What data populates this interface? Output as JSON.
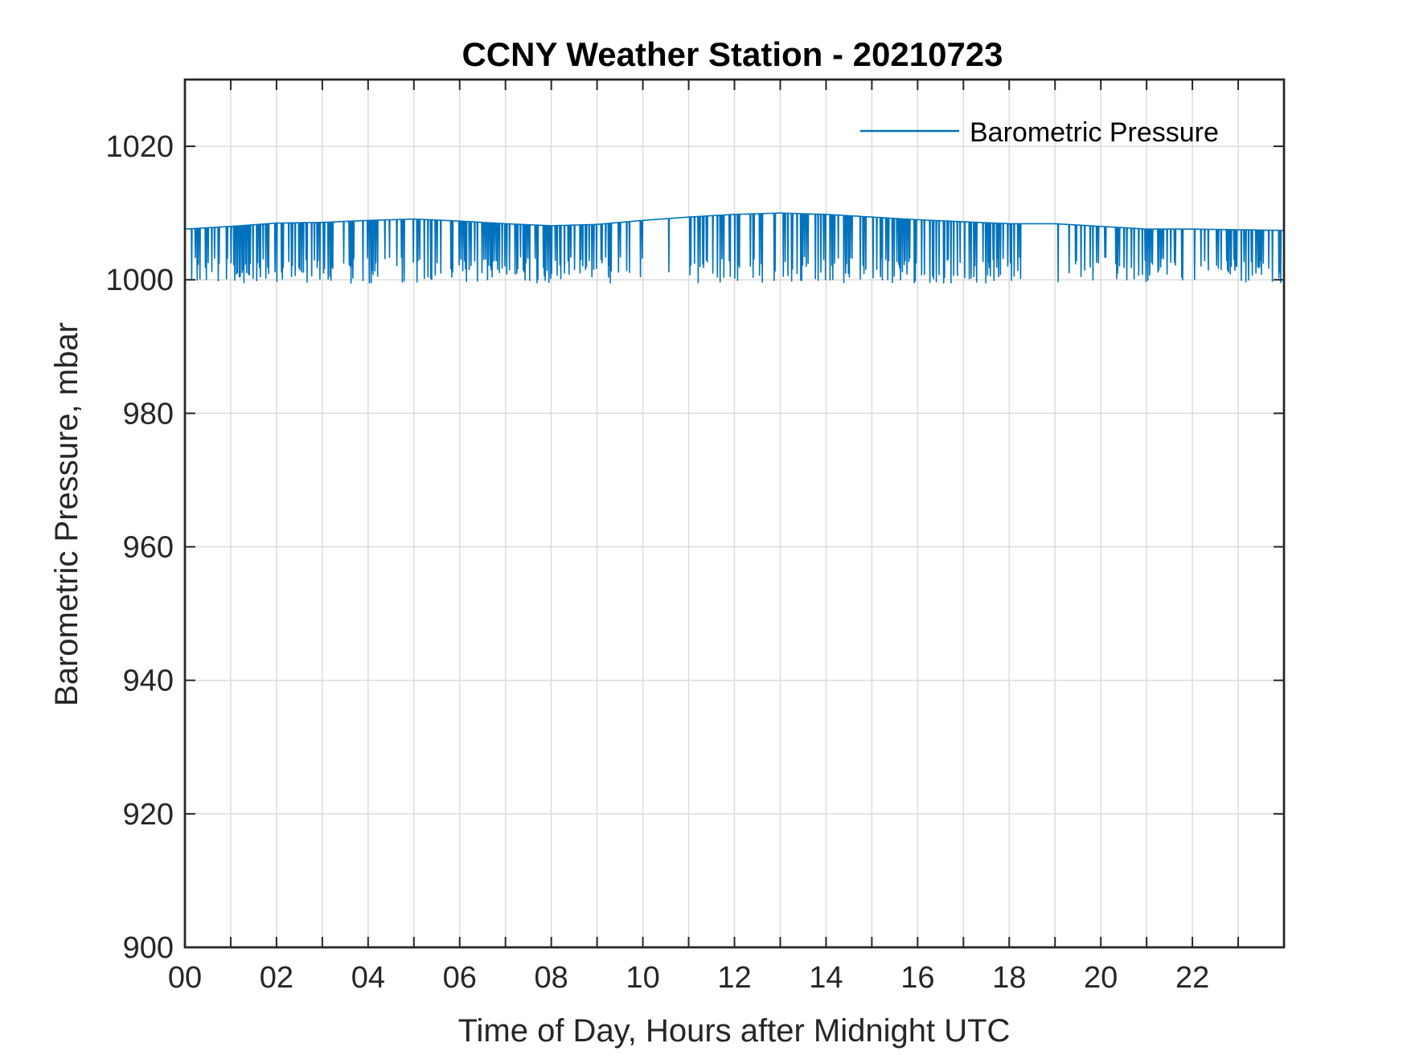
{
  "chart_data": {
    "type": "line",
    "title": "CCNY Weather Station - 20210723",
    "xlabel": "Time of Day, Hours after Midnight UTC",
    "ylabel": "Barometric Pressure, mbar",
    "xlim": [
      0,
      24
    ],
    "ylim": [
      900,
      1030
    ],
    "xticks": [
      0,
      2,
      4,
      6,
      8,
      10,
      12,
      14,
      16,
      18,
      20,
      22
    ],
    "xtick_labels": [
      "00",
      "02",
      "04",
      "06",
      "08",
      "10",
      "12",
      "14",
      "16",
      "18",
      "20",
      "22"
    ],
    "yticks": [
      900,
      920,
      940,
      960,
      980,
      1000,
      1020
    ],
    "ytick_labels": [
      "900",
      "920",
      "940",
      "960",
      "980",
      "1000",
      "1020"
    ],
    "minor_x_grid_step": 1,
    "grid": true,
    "legend": {
      "location": "top-right",
      "entries": [
        "Barometric Pressure"
      ]
    },
    "series": [
      {
        "name": "Barometric Pressure",
        "color": "#0072BD",
        "baseline": {
          "x": [
            0,
            1,
            2,
            3,
            4,
            5,
            6,
            7,
            8,
            9,
            10,
            11,
            12,
            13,
            14,
            15,
            16,
            17,
            18,
            19,
            20,
            21,
            22,
            23,
            24
          ],
          "y": [
            1007.6,
            1008.0,
            1008.5,
            1008.6,
            1008.9,
            1009.1,
            1008.8,
            1008.4,
            1008.1,
            1008.3,
            1008.9,
            1009.4,
            1009.8,
            1010.0,
            1009.8,
            1009.4,
            1009.0,
            1008.7,
            1008.4,
            1008.4,
            1008.0,
            1007.6,
            1007.6,
            1007.5,
            1007.4
          ]
        },
        "dip_minimum_range": [
          999.5,
          1003.5
        ],
        "note": "Baseline pressure ~1007.5-1010 mbar with frequent brief downward spikes to ~1000-1003 mbar throughout the day"
      }
    ]
  }
}
